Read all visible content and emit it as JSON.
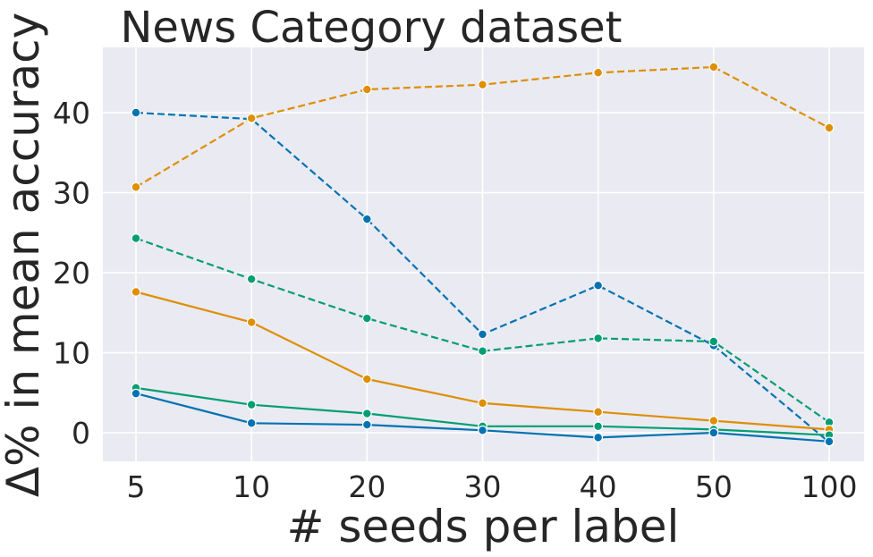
{
  "chart_data": {
    "type": "line",
    "title": "News Category dataset",
    "xlabel": "# seeds per label",
    "ylabel": "Δ% in mean accuracy",
    "categories": [
      "5",
      "10",
      "20",
      "30",
      "40",
      "50",
      "100"
    ],
    "yticks": [
      "0",
      "10",
      "20",
      "30",
      "40"
    ],
    "ylim": [
      -3.5,
      48
    ],
    "grid": true,
    "background": "#EAEAF2",
    "gridColor": "#FFFFFF",
    "series": [
      {
        "color": "#0173B2",
        "style": "dashed",
        "values": [
          40.0,
          39.2,
          26.7,
          12.3,
          18.4,
          10.9,
          -1.2
        ]
      },
      {
        "color": "#DE8F05",
        "style": "dashed",
        "values": [
          30.7,
          39.3,
          42.9,
          43.5,
          45.0,
          45.7,
          38.1
        ]
      },
      {
        "color": "#029E73",
        "style": "dashed",
        "values": [
          24.3,
          19.2,
          14.3,
          10.2,
          11.8,
          11.4,
          1.3
        ]
      },
      {
        "color": "#DE8F05",
        "style": "solid",
        "values": [
          17.6,
          13.8,
          6.7,
          3.7,
          2.6,
          1.5,
          0.4
        ]
      },
      {
        "color": "#029E73",
        "style": "solid",
        "values": [
          5.6,
          3.5,
          2.4,
          0.8,
          0.8,
          0.4,
          -0.3
        ]
      },
      {
        "color": "#0173B2",
        "style": "solid",
        "values": [
          4.9,
          1.2,
          1.0,
          0.3,
          -0.6,
          0.0,
          -1.1
        ]
      }
    ]
  }
}
